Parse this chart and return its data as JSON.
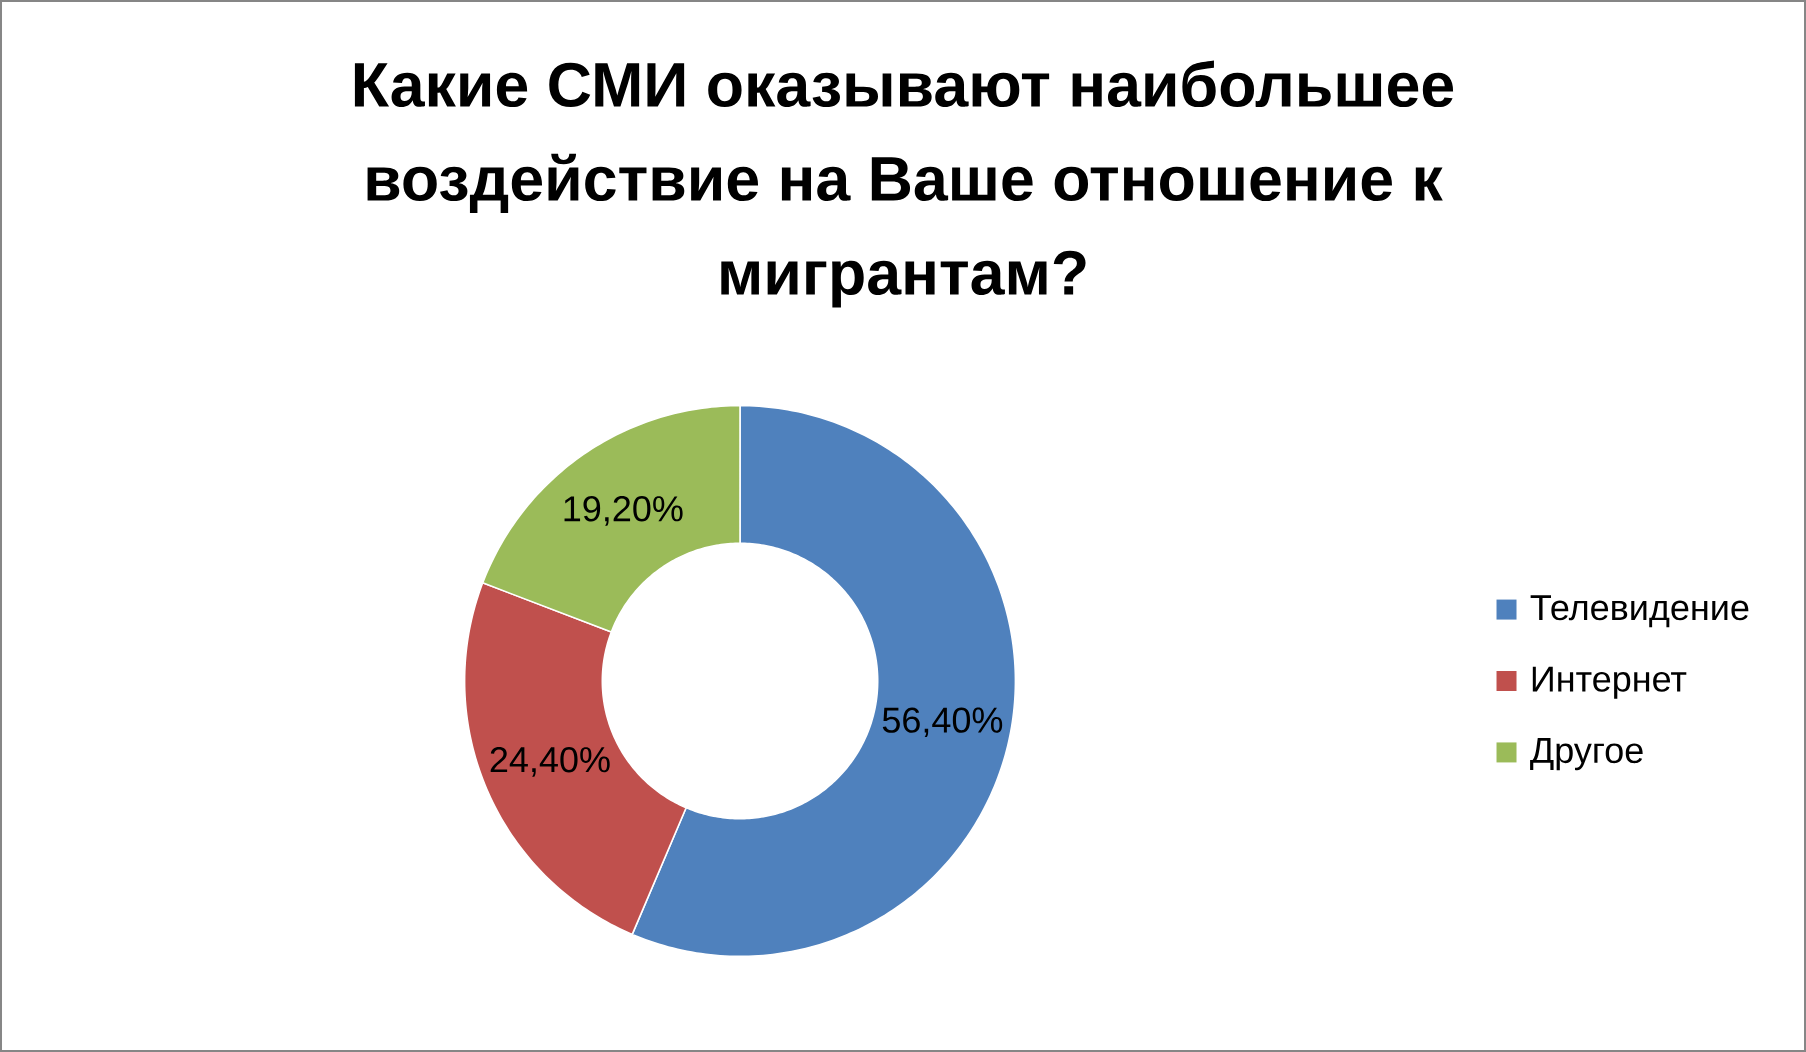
{
  "chart_data": {
    "type": "donut",
    "title": "Какие СМИ оказывают наибольшее воздействие на Ваше отношение к мигрантам?",
    "categories": [
      "Телевидение",
      "Интернет",
      "Другое"
    ],
    "values": [
      56.4,
      24.4,
      19.2
    ],
    "colors": [
      "#4f81bd",
      "#c0504d",
      "#9bbb59"
    ],
    "value_labels": [
      "56,40%",
      "24,40%",
      "19,20%"
    ],
    "legend": "right"
  }
}
